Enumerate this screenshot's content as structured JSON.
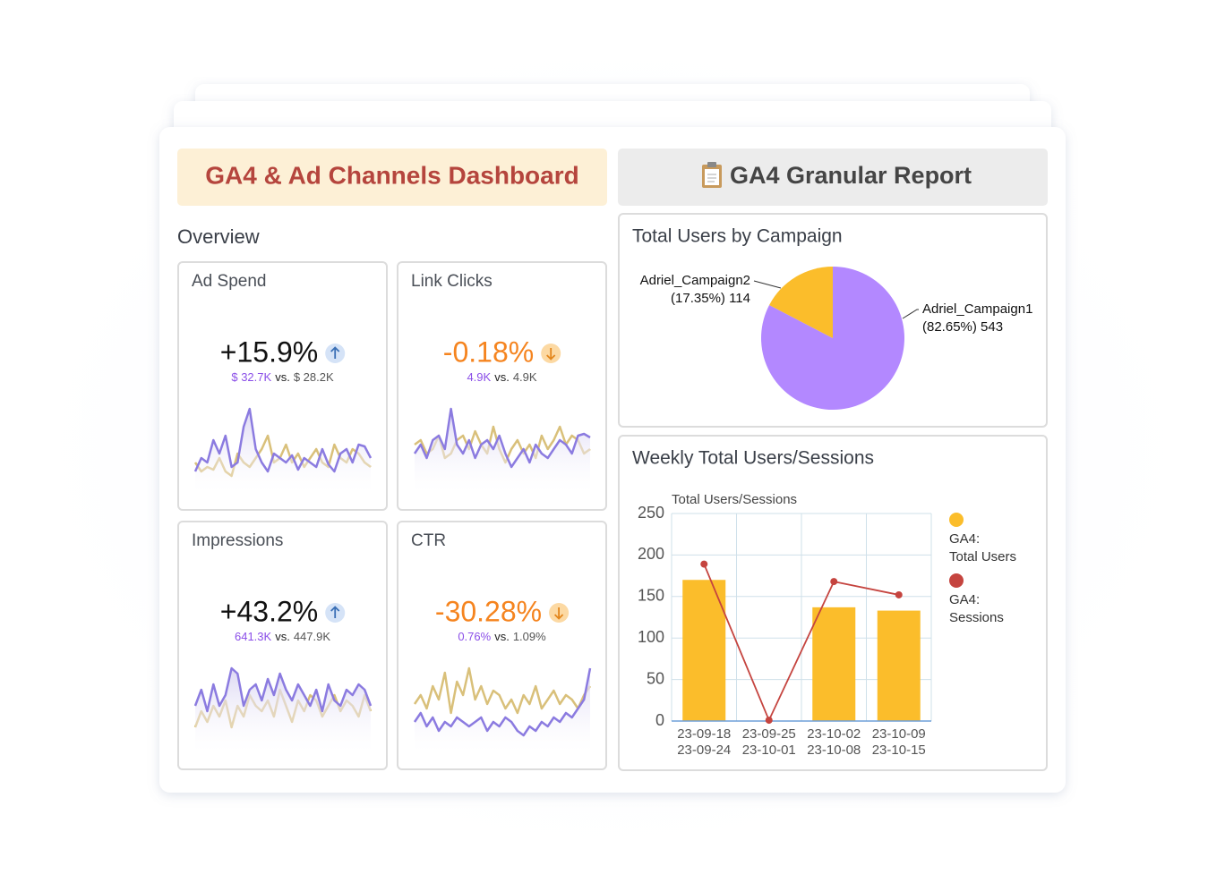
{
  "header": {
    "title": "GA4 & Ad Channels Dashboard",
    "report_button": "GA4 Granular Report"
  },
  "overview": {
    "title": "Overview",
    "cards": [
      {
        "title": "Ad Spend",
        "change": "+15.9%",
        "color": "#111111",
        "trend": "up",
        "current": "$ 32.7K",
        "vs": "vs.",
        "previous": "$ 28.2K",
        "series": [
          {
            "color": "#8b7be0",
            "values": [
              20,
              35,
              30,
              55,
              40,
              60,
              25,
              30,
              70,
              90,
              45,
              30,
              20,
              40,
              35,
              30,
              38,
              22,
              35,
              30,
              25,
              45,
              28,
              20,
              40,
              45,
              30,
              50,
              48,
              35
            ]
          },
          {
            "color": "#d9c07a",
            "values": [
              30,
              20,
              25,
              22,
              35,
              20,
              15,
              40,
              30,
              25,
              35,
              45,
              60,
              30,
              35,
              50,
              30,
              40,
              25,
              35,
              45,
              30,
              25,
              50,
              35,
              30,
              45,
              40,
              30,
              25
            ]
          }
        ]
      },
      {
        "title": "Link Clicks",
        "change": "-0.18%",
        "color": "#f5841f",
        "trend": "down",
        "current": "4.9K",
        "vs": "vs.",
        "previous": "4.9K",
        "series": [
          {
            "color": "#8b7be0",
            "values": [
              40,
              50,
              35,
              55,
              60,
              45,
              90,
              50,
              40,
              55,
              35,
              50,
              55,
              45,
              60,
              40,
              25,
              35,
              45,
              30,
              50,
              40,
              35,
              45,
              55,
              50,
              40,
              60,
              62,
              58
            ]
          },
          {
            "color": "#d9c07a",
            "values": [
              50,
              55,
              40,
              45,
              60,
              35,
              40,
              55,
              60,
              45,
              65,
              50,
              40,
              70,
              45,
              30,
              45,
              55,
              40,
              50,
              35,
              60,
              45,
              55,
              70,
              50,
              60,
              55,
              40,
              45
            ]
          }
        ]
      },
      {
        "title": "Impressions",
        "change": "+43.2%",
        "color": "#111111",
        "trend": "up",
        "current": "641.3K",
        "vs": "vs.",
        "previous": "447.9K",
        "series": [
          {
            "color": "#8b7be0",
            "values": [
              40,
              55,
              35,
              60,
              40,
              50,
              75,
              70,
              40,
              55,
              60,
              45,
              65,
              50,
              70,
              55,
              45,
              60,
              50,
              40,
              55,
              35,
              60,
              45,
              40,
              55,
              50,
              60,
              55,
              40
            ]
          },
          {
            "color": "#d9c07a",
            "values": [
              20,
              35,
              25,
              40,
              30,
              45,
              20,
              40,
              30,
              50,
              40,
              35,
              45,
              30,
              55,
              40,
              25,
              45,
              35,
              50,
              45,
              30,
              40,
              50,
              35,
              45,
              40,
              30,
              50,
              35
            ]
          }
        ]
      },
      {
        "title": "CTR",
        "change": "-30.28%",
        "color": "#f5841f",
        "trend": "down",
        "current": "0.76%",
        "vs": "vs.",
        "previous": "1.09%",
        "series": [
          {
            "color": "#8b7be0",
            "values": [
              30,
              40,
              25,
              35,
              20,
              30,
              25,
              35,
              30,
              25,
              30,
              35,
              20,
              30,
              25,
              35,
              30,
              20,
              15,
              25,
              20,
              30,
              25,
              35,
              30,
              40,
              35,
              45,
              55,
              90
            ]
          },
          {
            "color": "#d9c07a",
            "values": [
              50,
              60,
              45,
              70,
              55,
              85,
              40,
              75,
              60,
              90,
              55,
              70,
              50,
              65,
              60,
              45,
              55,
              40,
              60,
              50,
              70,
              45,
              55,
              65,
              50,
              60,
              55,
              45,
              60,
              70
            ]
          }
        ]
      }
    ]
  },
  "chart_data": [
    {
      "type": "pie",
      "title": "Total Users by Campaign",
      "categories": [
        "Adriel_Campaign1",
        "Adriel_Campaign2"
      ],
      "values": [
        543,
        114
      ],
      "value_labels": [
        "(82.65%) 543",
        "(17.35%) 114"
      ],
      "colors": [
        "#b388ff",
        "#fbbd2b"
      ]
    },
    {
      "type": "bar_line",
      "title": "Weekly Total Users/Sessions",
      "y_label": "Total Users/Sessions",
      "categories": [
        [
          "23-09-18",
          "23-09-24"
        ],
        [
          "23-09-25",
          "23-10-01"
        ],
        [
          "23-10-02",
          "23-10-08"
        ],
        [
          "23-10-09",
          "23-10-15"
        ]
      ],
      "series": [
        {
          "name": "GA4:\nTotal Users",
          "type": "bar",
          "color": "#fbbd2b",
          "values": [
            170,
            0,
            137,
            133
          ]
        },
        {
          "name": "GA4:\nSessions",
          "type": "line",
          "color": "#c5443f",
          "values": [
            189,
            1,
            168,
            152
          ]
        }
      ],
      "ylim": [
        0,
        250
      ],
      "yticks": [
        0,
        50,
        100,
        150,
        200,
        250
      ],
      "grid": true
    }
  ]
}
